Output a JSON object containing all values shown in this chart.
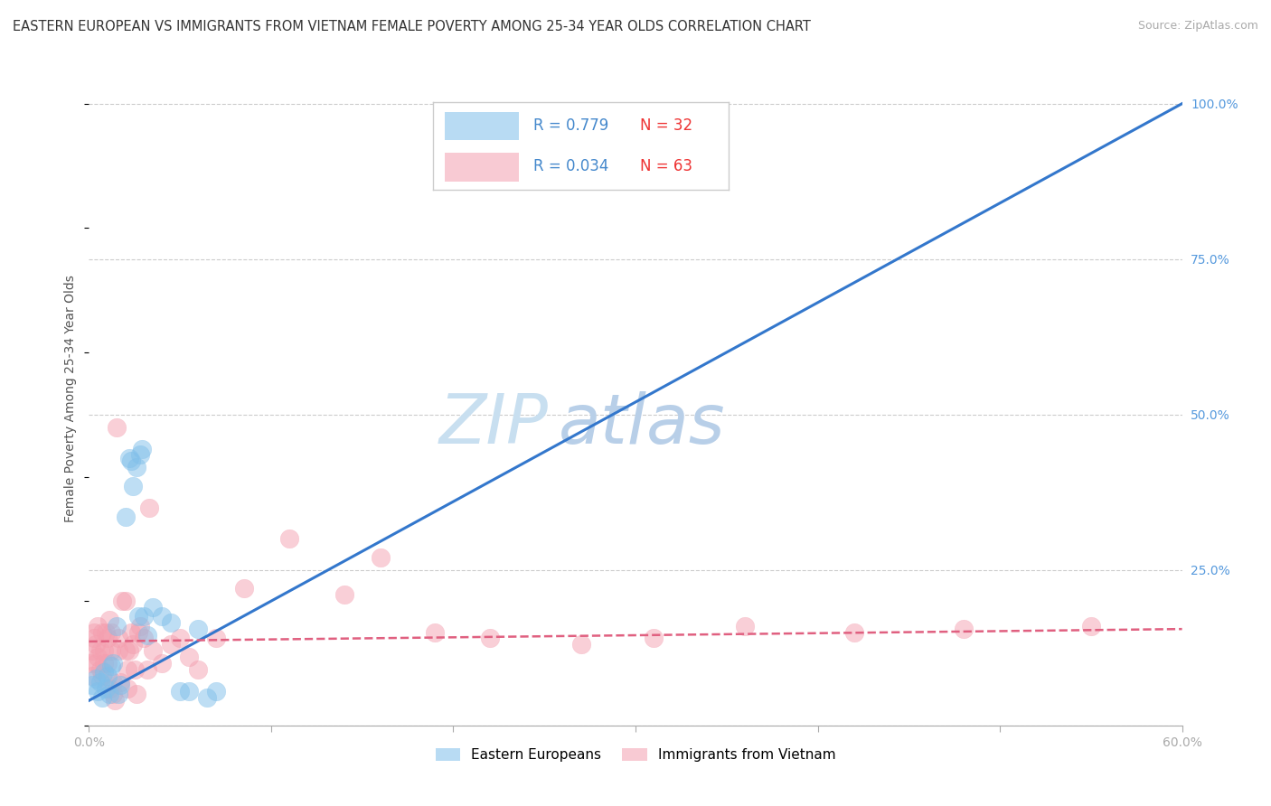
{
  "title": "EASTERN EUROPEAN VS IMMIGRANTS FROM VIETNAM FEMALE POVERTY AMONG 25-34 YEAR OLDS CORRELATION CHART",
  "source": "Source: ZipAtlas.com",
  "ylabel": "Female Poverty Among 25-34 Year Olds",
  "xlim": [
    0.0,
    0.6
  ],
  "ylim": [
    0.0,
    1.05
  ],
  "xticks": [
    0.0,
    0.1,
    0.2,
    0.3,
    0.4,
    0.5,
    0.6
  ],
  "xticklabels": [
    "0.0%",
    "",
    "",
    "",
    "",
    "",
    "60.0%"
  ],
  "yticks": [
    0.0,
    0.25,
    0.5,
    0.75,
    1.0
  ],
  "yticklabels_right": [
    "",
    "25.0%",
    "50.0%",
    "75.0%",
    "100.0%"
  ],
  "watermark_zip": "ZIP",
  "watermark_atlas": "atlas",
  "background_color": "#ffffff",
  "grid_color": "#cccccc",
  "group1_label": "Eastern Europeans",
  "group1_color": "#7fbfea",
  "group1_R": 0.779,
  "group1_N": 32,
  "group1_scatter": [
    [
      0.002,
      0.065
    ],
    [
      0.004,
      0.075
    ],
    [
      0.005,
      0.055
    ],
    [
      0.006,
      0.07
    ],
    [
      0.007,
      0.045
    ],
    [
      0.008,
      0.085
    ],
    [
      0.009,
      0.06
    ],
    [
      0.01,
      0.08
    ],
    [
      0.011,
      0.05
    ],
    [
      0.012,
      0.095
    ],
    [
      0.013,
      0.1
    ],
    [
      0.015,
      0.16
    ],
    [
      0.016,
      0.05
    ],
    [
      0.017,
      0.065
    ],
    [
      0.02,
      0.335
    ],
    [
      0.022,
      0.43
    ],
    [
      0.023,
      0.425
    ],
    [
      0.024,
      0.385
    ],
    [
      0.026,
      0.415
    ],
    [
      0.027,
      0.175
    ],
    [
      0.028,
      0.435
    ],
    [
      0.029,
      0.445
    ],
    [
      0.03,
      0.175
    ],
    [
      0.032,
      0.145
    ],
    [
      0.035,
      0.19
    ],
    [
      0.04,
      0.175
    ],
    [
      0.045,
      0.165
    ],
    [
      0.05,
      0.055
    ],
    [
      0.055,
      0.055
    ],
    [
      0.06,
      0.155
    ],
    [
      0.065,
      0.045
    ],
    [
      0.07,
      0.055
    ]
  ],
  "group1_line_x": [
    0.0,
    0.6
  ],
  "group1_line_y": [
    0.04,
    1.0
  ],
  "group2_label": "Immigrants from Vietnam",
  "group2_color": "#f4a0b0",
  "group2_R": 0.034,
  "group2_N": 63,
  "group2_scatter": [
    [
      0.001,
      0.1
    ],
    [
      0.002,
      0.12
    ],
    [
      0.002,
      0.08
    ],
    [
      0.003,
      0.15
    ],
    [
      0.003,
      0.14
    ],
    [
      0.004,
      0.1
    ],
    [
      0.004,
      0.13
    ],
    [
      0.005,
      0.16
    ],
    [
      0.005,
      0.11
    ],
    [
      0.006,
      0.09
    ],
    [
      0.006,
      0.12
    ],
    [
      0.007,
      0.08
    ],
    [
      0.007,
      0.15
    ],
    [
      0.008,
      0.12
    ],
    [
      0.008,
      0.1
    ],
    [
      0.009,
      0.15
    ],
    [
      0.01,
      0.14
    ],
    [
      0.01,
      0.1
    ],
    [
      0.011,
      0.06
    ],
    [
      0.011,
      0.17
    ],
    [
      0.012,
      0.15
    ],
    [
      0.012,
      0.12
    ],
    [
      0.013,
      0.07
    ],
    [
      0.013,
      0.05
    ],
    [
      0.014,
      0.04
    ],
    [
      0.015,
      0.48
    ],
    [
      0.016,
      0.14
    ],
    [
      0.016,
      0.12
    ],
    [
      0.017,
      0.07
    ],
    [
      0.018,
      0.2
    ],
    [
      0.02,
      0.2
    ],
    [
      0.02,
      0.12
    ],
    [
      0.021,
      0.09
    ],
    [
      0.021,
      0.06
    ],
    [
      0.022,
      0.12
    ],
    [
      0.023,
      0.15
    ],
    [
      0.024,
      0.13
    ],
    [
      0.025,
      0.09
    ],
    [
      0.026,
      0.05
    ],
    [
      0.027,
      0.15
    ],
    [
      0.028,
      0.16
    ],
    [
      0.03,
      0.14
    ],
    [
      0.032,
      0.09
    ],
    [
      0.033,
      0.35
    ],
    [
      0.035,
      0.12
    ],
    [
      0.04,
      0.1
    ],
    [
      0.045,
      0.13
    ],
    [
      0.05,
      0.14
    ],
    [
      0.055,
      0.11
    ],
    [
      0.06,
      0.09
    ],
    [
      0.07,
      0.14
    ],
    [
      0.085,
      0.22
    ],
    [
      0.11,
      0.3
    ],
    [
      0.14,
      0.21
    ],
    [
      0.16,
      0.27
    ],
    [
      0.19,
      0.15
    ],
    [
      0.22,
      0.14
    ],
    [
      0.27,
      0.13
    ],
    [
      0.31,
      0.14
    ],
    [
      0.36,
      0.16
    ],
    [
      0.42,
      0.15
    ],
    [
      0.48,
      0.155
    ],
    [
      0.55,
      0.16
    ]
  ],
  "group2_line_x": [
    0.0,
    0.6
  ],
  "group2_line_y": [
    0.135,
    0.155
  ],
  "legend_R1": "R = 0.779",
  "legend_N1": "N = 32",
  "legend_R2": "R = 0.034",
  "legend_N2": "N = 63",
  "title_fontsize": 10.5,
  "axis_label_fontsize": 10,
  "tick_fontsize": 10,
  "source_fontsize": 9,
  "watermark_fontsize_zip": 55,
  "watermark_fontsize_atlas": 55
}
